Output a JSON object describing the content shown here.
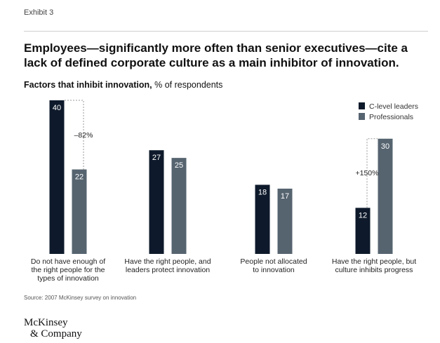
{
  "exhibit_label": "Exhibit 3",
  "title": "Employees—significantly more often than senior executives—cite a lack of defined corporate culture as a main inhibitor of innovation.",
  "subtitle_bold": "Factors that inhibit innovation,",
  "subtitle_rest": " % of respondents",
  "source": "Source: 2007 McKinsey survey on innovation",
  "logo": {
    "line1": "McKinsey",
    "line2": "& Company"
  },
  "colors": {
    "c_level": "#0e1a2b",
    "professionals": "#566470",
    "annotation": "#999999"
  },
  "chart_data": {
    "type": "bar",
    "title": "Factors that inhibit innovation, % of respondents",
    "xlabel": "",
    "ylabel": "% of respondents",
    "ylim": [
      0,
      40
    ],
    "categories": [
      [
        "Do not have enough of",
        "the right people for the",
        "types of innovation"
      ],
      [
        "Have the right people, and",
        "leaders protect innovation"
      ],
      [
        "People not allocated",
        "to innovation"
      ],
      [
        "Have the right people, but",
        "culture inhibits progress"
      ]
    ],
    "series": [
      {
        "name": "C-level leaders",
        "values": [
          40,
          27,
          18,
          12
        ]
      },
      {
        "name": "Professionals",
        "values": [
          22,
          25,
          17,
          30
        ]
      }
    ],
    "legend": [
      "C-level leaders",
      "Professionals"
    ],
    "legend_position": "top-right",
    "annotations": [
      {
        "category_index": 0,
        "label": "–82%"
      },
      {
        "category_index": 3,
        "label": "+150%"
      }
    ]
  }
}
